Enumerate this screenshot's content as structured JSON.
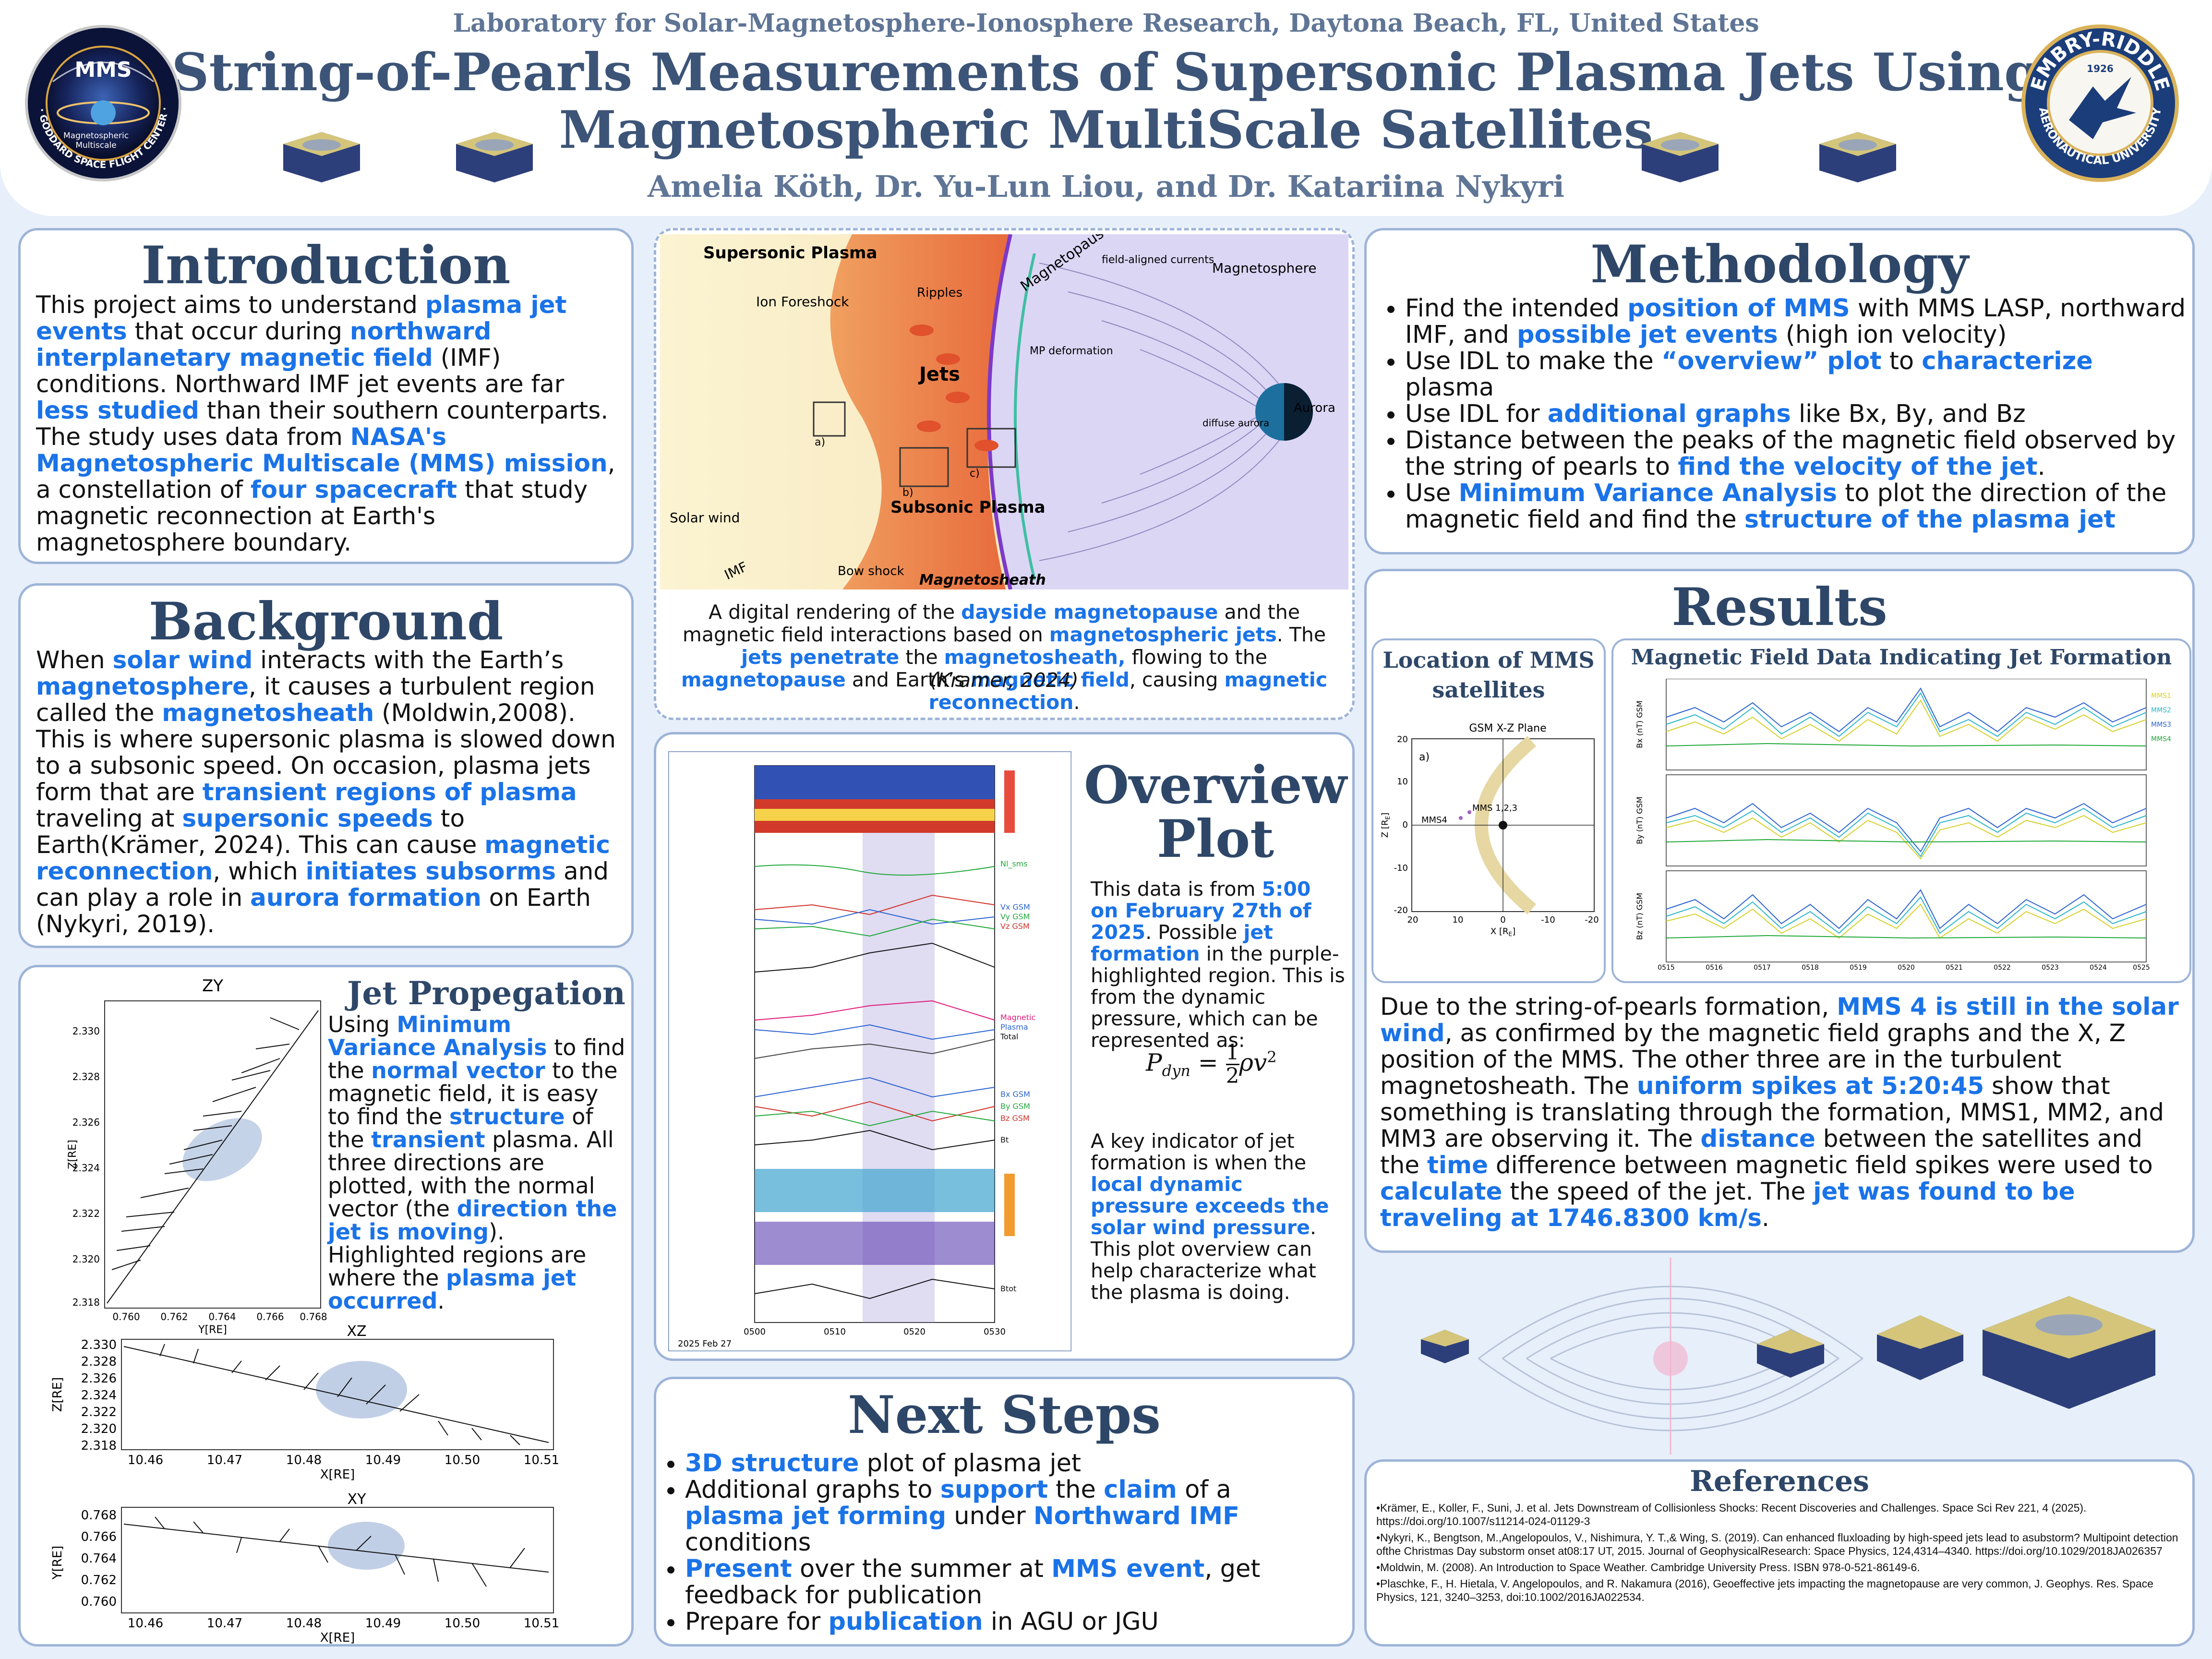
{
  "header": {
    "lab": "Laboratory for Solar-Magnetosphere-Ionosphere Research, Daytona Beach, FL, United States",
    "title_line1": "String-of-Pearls Measurements of Supersonic Plasma Jets Using",
    "title_line2": "Magnetospheric MultiScale Satellites",
    "authors": "Amelia Köth, Dr. Yu-Lun Liou, and Dr. Katariina Nykyri",
    "logo_left": {
      "top": "MMS",
      "lines": [
        "Magnetospheric",
        "Multiscale"
      ],
      "ring": "NASA · GODDARD SPACE FLIGHT CENTER · SWRI"
    },
    "logo_right": {
      "top": "EMBRY-RIDDLE",
      "year": "1926",
      "bottom": "AERONAUTICAL UNIVERSITY"
    }
  },
  "introduction": {
    "heading": "Introduction",
    "segments": [
      {
        "t": "This project aims to understand "
      },
      {
        "t": "plasma jet events",
        "hl": true
      },
      {
        "t": " that occur during "
      },
      {
        "t": "northward interplanetary magnetic field",
        "hl": true
      },
      {
        "t": " (IMF) conditions. Northward IMF jet events are far "
      },
      {
        "t": "less studied",
        "hl": true
      },
      {
        "t": " than their southern counterparts. The study uses data from "
      },
      {
        "t": "NASA's Magnetospheric Multiscale (MMS) mission",
        "hl": true
      },
      {
        "t": ", a constellation of "
      },
      {
        "t": "four spacecraft",
        "hl": true
      },
      {
        "t": " that study magnetic reconnection at Earth's magnetosphere boundary."
      }
    ]
  },
  "background": {
    "heading": "Background",
    "segments": [
      {
        "t": "When "
      },
      {
        "t": "solar wind",
        "hl": true
      },
      {
        "t": " interacts with the Earth’s "
      },
      {
        "t": "magnetosphere",
        "hl": true
      },
      {
        "t": ", it causes a turbulent region called the "
      },
      {
        "t": "magnetosheath",
        "hl": true
      },
      {
        "t": " (Moldwin,2008). This is where supersonic plasma is slowed down to a subsonic speed. On occasion, plasma jets form that are "
      },
      {
        "t": "transient regions of plasma",
        "hl": true
      },
      {
        "t": " traveling at "
      },
      {
        "t": "supersonic speeds",
        "hl": true
      },
      {
        "t": " to Earth(Krämer, 2024). This can cause "
      },
      {
        "t": "magnetic reconnection",
        "hl": true
      },
      {
        "t": ", which "
      },
      {
        "t": "initiates subsorms",
        "hl": true
      },
      {
        "t": " and can play a role in "
      },
      {
        "t": "aurora formation",
        "hl": true
      },
      {
        "t": " on Earth (Nykyri, 2019)."
      }
    ]
  },
  "jet_propagation": {
    "heading": "Jet Propegation",
    "segments": [
      {
        "t": "Using "
      },
      {
        "t": "Minimum Variance Analysis",
        "hl": true
      },
      {
        "t": " to find the "
      },
      {
        "t": "normal vector",
        "hl": true
      },
      {
        "t": " to the magnetic field, it is easy to find the "
      },
      {
        "t": "structure",
        "hl": true
      },
      {
        "t": " of the "
      },
      {
        "t": "transient",
        "hl": true
      },
      {
        "t": " plasma. All three directions are plotted, with the normal vector (the "
      },
      {
        "t": "direction the jet is moving",
        "hl": true
      },
      {
        "t": "). Highlighted regions are where the "
      },
      {
        "t": "plasma jet occurred",
        "hl": true
      },
      {
        "t": "."
      }
    ],
    "plot_zy": {
      "title": "ZY",
      "xlabel": "Y[RE]",
      "ylabel": "Z[RE]",
      "xticks": [
        "0.760",
        "0.762",
        "0.764",
        "0.766",
        "0.768"
      ],
      "yticks": [
        "2.330",
        "2.328",
        "2.326",
        "2.324",
        "2.322",
        "2.320",
        "2.318"
      ]
    },
    "plot_xz": {
      "title": "XZ",
      "xlabel": "X[RE]",
      "ylabel": "Z[RE]",
      "xticks": [
        "10.46",
        "10.47",
        "10.48",
        "10.49",
        "10.50",
        "10.51"
      ],
      "yticks": [
        "2.330",
        "2.328",
        "2.326",
        "2.324",
        "2.322",
        "2.320",
        "2.318"
      ]
    },
    "plot_xy": {
      "title": "XY",
      "xlabel": "X[RE]",
      "ylabel": "Y[RE]",
      "xticks": [
        "10.46",
        "10.47",
        "10.48",
        "10.49",
        "10.50",
        "10.51"
      ],
      "yticks": [
        "0.768",
        "0.766",
        "0.764",
        "0.762",
        "0.760"
      ]
    }
  },
  "diagram": {
    "labels": {
      "supersonic": "Supersonic Plasma",
      "ion_foreshock": "Ion Foreshock",
      "ripples": "Ripples",
      "magnetopause": "Magnetopause",
      "field_aligned": "field-aligned currents",
      "magnetosphere": "Magnetosphere",
      "mp_deformation": "MP deformation",
      "jets": "Jets",
      "aurora": "Aurora",
      "diffuse": "diffuse aurora",
      "subsonic": "Subsonic Plasma",
      "solar_wind": "Solar wind",
      "imf": "IMF",
      "bow_shock": "Bow shock",
      "magnetosheath": "Magnetosheath",
      "box_a": "a)",
      "box_b": "b)",
      "box_c": "c)"
    },
    "caption_segments": [
      {
        "t": "A digital rendering of the "
      },
      {
        "t": "dayside magnetopause",
        "hl": true
      },
      {
        "t": " and the magnetic field interactions based on "
      },
      {
        "t": "magnetospheric jets",
        "hl": true
      },
      {
        "t": ". The "
      },
      {
        "t": "jets penetrate",
        "hl": true
      },
      {
        "t": " the "
      },
      {
        "t": "magnetosheath,",
        "hl": true
      },
      {
        "t": " flowing to the "
      },
      {
        "t": "magnetopause",
        "hl": true
      },
      {
        "t": " and Earth’s "
      },
      {
        "t": "magnetic field",
        "hl": true
      },
      {
        "t": ", causing "
      },
      {
        "t": "magnetic reconnection",
        "hl": true
      },
      {
        "t": "."
      }
    ],
    "caption_cite": "(Kramer, 2024)"
  },
  "overview": {
    "heading_line1": "Overview",
    "heading_line2": "Plot",
    "seg1": [
      {
        "t": "This data is from "
      },
      {
        "t": "5:00 on February 27th of 2025",
        "hl": true
      },
      {
        "t": ". Possible "
      },
      {
        "t": "jet formation",
        "hl": true
      },
      {
        "t": " in the purple-highlighted region. This is from the dynamic pressure, which can be represented as:"
      }
    ],
    "formula_lhs": "P",
    "formula_sub": "dyn",
    "formula_eq": "=",
    "formula_num": "1",
    "formula_den": "2",
    "formula_rest": "ρv",
    "formula_exp": "2",
    "seg2": [
      {
        "t": "A key indicator of jet formation is when the "
      },
      {
        "t": "local dynamic pressure exceeds the solar wind pressure",
        "hl": true
      },
      {
        "t": ". This plot overview can help characterize what the plasma is doing."
      }
    ],
    "plot_labels": [
      "Nl_sms",
      "Vx GSM",
      "Vy GSM",
      "Vz GSM",
      "Magnetic",
      "Plasma",
      "Total",
      "Bx GSM",
      "By GSM",
      "Bz GSM",
      "Bt",
      "Btot"
    ],
    "time_ticks": [
      "0500",
      "0510",
      "0520",
      "0530"
    ],
    "date": "2025 Feb 27"
  },
  "next_steps": {
    "heading": "Next Steps",
    "items": [
      [
        {
          "t": "3D structure",
          "hl": true
        },
        {
          "t": " plot of plasma jet"
        }
      ],
      [
        {
          "t": "Additional graphs to "
        },
        {
          "t": "support",
          "hl": true
        },
        {
          "t": " the "
        },
        {
          "t": "claim",
          "hl": true
        },
        {
          "t": " of a "
        },
        {
          "t": "plasma jet forming",
          "hl": true
        },
        {
          "t": " under "
        },
        {
          "t": "Northward IMF",
          "hl": true
        },
        {
          "t": " conditions"
        }
      ],
      [
        {
          "t": "Present",
          "hl": true
        },
        {
          "t": " over the summer at "
        },
        {
          "t": "MMS event",
          "hl": true
        },
        {
          "t": ", get feedback for publication"
        }
      ],
      [
        {
          "t": "Prepare for "
        },
        {
          "t": "publication",
          "hl": true
        },
        {
          "t": " in AGU or JGU"
        }
      ]
    ]
  },
  "methodology": {
    "heading": "Methodology",
    "items": [
      [
        {
          "t": "Find the intended "
        },
        {
          "t": "position of MMS",
          "hl": true
        },
        {
          "t": " with MMS LASP, northward IMF, and "
        },
        {
          "t": "possible jet events",
          "hl": true
        },
        {
          "t": " (high ion velocity)"
        }
      ],
      [
        {
          "t": "Use IDL to make the "
        },
        {
          "t": "“overview” plot",
          "hl": true
        },
        {
          "t": " to "
        },
        {
          "t": "characterize",
          "hl": true
        },
        {
          "t": " plasma"
        }
      ],
      [
        {
          "t": "Use IDL for "
        },
        {
          "t": "additional graphs",
          "hl": true
        },
        {
          "t": " like Bx, By, and Bz"
        }
      ],
      [
        {
          "t": "Distance between the peaks of the magnetic field observed by the string of pearls to "
        },
        {
          "t": "find the velocity of the jet",
          "hl": true
        },
        {
          "t": "."
        }
      ],
      [
        {
          "t": "Use "
        },
        {
          "t": "Minimum Variance Analysis",
          "hl": true
        },
        {
          "t": " to plot the direction of the magnetic field and find the "
        },
        {
          "t": "structure of the plasma jet",
          "hl": true
        }
      ]
    ]
  },
  "results": {
    "heading": "Results",
    "location_title_line1": "Location of MMS",
    "location_title_line2": "satellites",
    "location_plot": {
      "title": "GSM X-Z Plane",
      "panel": "a)",
      "mms4": "MMS4",
      "mms123": "MMS 1,2,3",
      "xlabel": "X [R",
      "xlabel_sub": "E",
      "ylabel": "Z [R",
      "ylabel_sub": "E",
      "xticks": [
        "20",
        "10",
        "0",
        "-10",
        "-20"
      ],
      "yticks": [
        "20",
        "10",
        "0",
        "-10",
        "-20"
      ]
    },
    "field_title": "Magnetic Field Data Indicating Jet Formation",
    "field_panels": [
      "Bx (nT) GSM",
      "By (nT) GSM",
      "Bz (nT) GSM"
    ],
    "field_legend": [
      "MMS1",
      "MMS2",
      "MMS3",
      "MMS4"
    ],
    "field_times": [
      "0515",
      "0516",
      "0517",
      "0518",
      "0519",
      "0520",
      "0521",
      "0522",
      "0523",
      "0524",
      "0525"
    ],
    "segments": [
      {
        "t": "Due to the string-of-pearls formation, "
      },
      {
        "t": "MMS 4 is still in the solar wind",
        "hl": true
      },
      {
        "t": ", as confirmed by the magnetic field graphs and the X, Z position of the MMS. The other three are in the turbulent magnetosheath. The "
      },
      {
        "t": "uniform spikes at 5:20:45",
        "hl": true
      },
      {
        "t": " show that something is translating through the formation, MMS1, MM2, and MM3 are observing it. The "
      },
      {
        "t": "distance",
        "hl": true
      },
      {
        "t": " between the satellites and the "
      },
      {
        "t": "time",
        "hl": true
      },
      {
        "t": " difference between magnetic field spikes were used to "
      },
      {
        "t": "calculate",
        "hl": true
      },
      {
        "t": " the speed of the jet. The "
      },
      {
        "t": "jet was found to be traveling at 1746.8300 km/s",
        "hl": true
      },
      {
        "t": "."
      }
    ]
  },
  "references": {
    "heading": "References",
    "items": [
      "•Krämer, E., Koller, F., Suni, J. et al. Jets Downstream of Collisionless Shocks: Recent Discoveries and Challenges. Space Sci Rev 221, 4 (2025). https://doi.org/10.1007/s11214-024-01129-3",
      "•Nykyri, K., Bengtson, M.,Angelopoulos, V., Nishimura, Y. T.,& Wing, S. (2019). Can enhanced fluxloading by high-speed jets lead to asubstorm? Multipoint detection ofthe Christmas Day substorm onset at08:17 UT, 2015. Journal of GeophysicalResearch: Space Physics, 124,4314–4340. https://doi.org/10.1029/2018JA026357",
      "•Moldwin, M. (2008). An Introduction to Space Weather. Cambridge University Press. ISBN 978-0-521-86149-6.",
      "•Plaschke, F., H. Hietala, V. Angelopoulos, and R. Nakamura (2016), Geoeffective jets impacting the magnetopause are very common, J. Geophys. Res. Space Physics, 121, 3240–3253, doi:10.1002/2016JA022534."
    ]
  }
}
